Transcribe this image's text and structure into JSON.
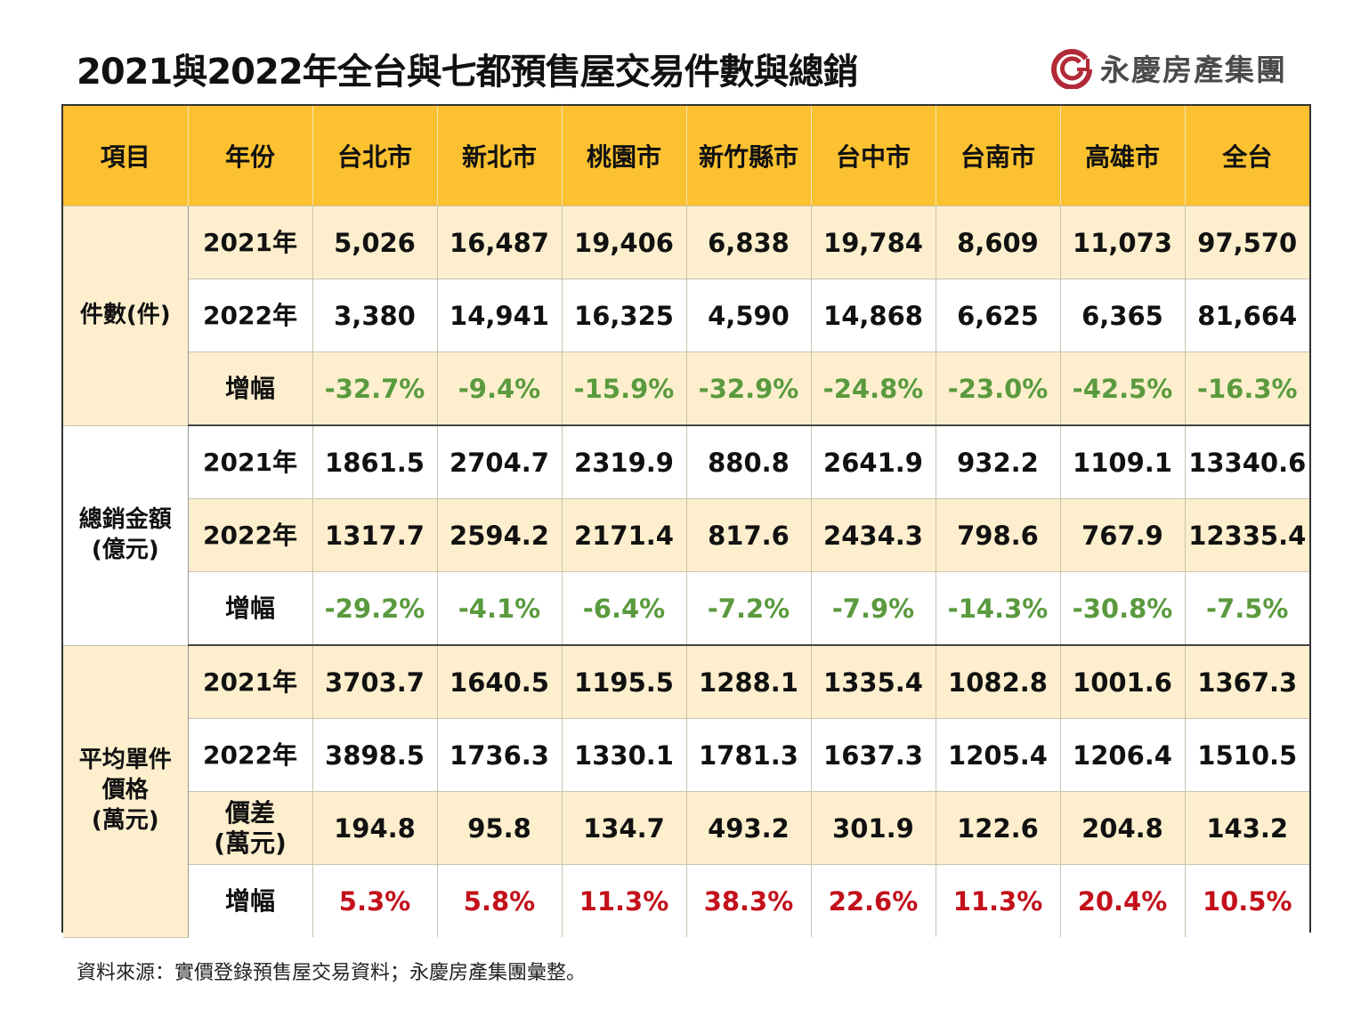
{
  "title": "2021與2022年全台與七都預售屋交易件數與總銷",
  "logo": {
    "text": "永慶房產集團",
    "icon": "yungching-logo-icon",
    "color": "#b22a37"
  },
  "colors": {
    "header": "#fcc130",
    "tan_row": "#fdefcd",
    "negative": "#5a9a3e",
    "positive": "#c3111b"
  },
  "chart_data": {
    "type": "table",
    "title": "2021與2022年全台與七都預售屋交易件數與總銷",
    "columns": [
      "項目",
      "年份",
      "台北市",
      "新北市",
      "桃園市",
      "新竹縣市",
      "台中市",
      "台南市",
      "高雄市",
      "全台"
    ],
    "sections": [
      {
        "category": "件數(件)",
        "rows": [
          {
            "label": "2021年",
            "values": [
              "5,026",
              "16,487",
              "19,406",
              "6,838",
              "19,784",
              "8,609",
              "11,073",
              "97,570"
            ]
          },
          {
            "label": "2022年",
            "values": [
              "3,380",
              "14,941",
              "16,325",
              "4,590",
              "14,868",
              "6,625",
              "6,365",
              "81,664"
            ]
          },
          {
            "label": "增幅",
            "values": [
              "-32.7%",
              "-9.4%",
              "-15.9%",
              "-32.9%",
              "-24.8%",
              "-23.0%",
              "-42.5%",
              "-16.3%"
            ]
          }
        ]
      },
      {
        "category": "總銷金額(億元)",
        "category_lines": [
          "總銷金額",
          "(億元)"
        ],
        "rows": [
          {
            "label": "2021年",
            "values": [
              "1861.5",
              "2704.7",
              "2319.9",
              "880.8",
              "2641.9",
              "932.2",
              "1109.1",
              "13340.6"
            ]
          },
          {
            "label": "2022年",
            "values": [
              "1317.7",
              "2594.2",
              "2171.4",
              "817.6",
              "2434.3",
              "798.6",
              "767.9",
              "12335.4"
            ]
          },
          {
            "label": "增幅",
            "values": [
              "-29.2%",
              "-4.1%",
              "-6.4%",
              "-7.2%",
              "-7.9%",
              "-14.3%",
              "-30.8%",
              "-7.5%"
            ]
          }
        ]
      },
      {
        "category": "平均單件價格(萬元)",
        "category_lines": [
          "平均單件",
          "價格",
          "(萬元)"
        ],
        "rows": [
          {
            "label": "2021年",
            "values": [
              "3703.7",
              "1640.5",
              "1195.5",
              "1288.1",
              "1335.4",
              "1082.8",
              "1001.6",
              "1367.3"
            ]
          },
          {
            "label": "2022年",
            "values": [
              "3898.5",
              "1736.3",
              "1330.1",
              "1781.3",
              "1637.3",
              "1205.4",
              "1206.4",
              "1510.5"
            ]
          },
          {
            "label": "價差(萬元)",
            "label_lines": [
              "價差",
              "(萬元)"
            ],
            "values": [
              "194.8",
              "95.8",
              "134.7",
              "493.2",
              "301.9",
              "122.6",
              "204.8",
              "143.2"
            ]
          },
          {
            "label": "增幅",
            "values": [
              "5.3%",
              "5.8%",
              "11.3%",
              "38.3%",
              "22.6%",
              "11.3%",
              "20.4%",
              "10.5%"
            ]
          }
        ]
      }
    ]
  },
  "footnote": "資料來源：實價登錄預售屋交易資料；永慶房產集團彙整。"
}
